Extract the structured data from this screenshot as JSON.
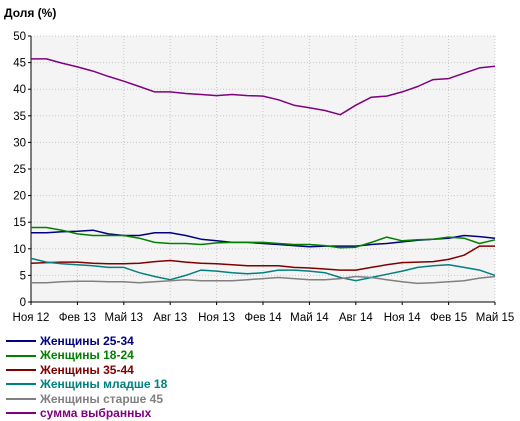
{
  "chart_data": {
    "type": "line",
    "title": "",
    "ylabel": "Доля (%)",
    "xlabel": "",
    "ylim": [
      0,
      50
    ],
    "yticks": [
      0,
      5,
      10,
      15,
      20,
      25,
      30,
      35,
      40,
      45,
      50
    ],
    "grid": true,
    "legend_placement": "bottom-left",
    "background": "#f4f4f4",
    "xtick_labels": [
      {
        "index": 0,
        "label": "Ноя 12"
      },
      {
        "index": 3,
        "label": "Фев 13"
      },
      {
        "index": 6,
        "label": "Май 13"
      },
      {
        "index": 9,
        "label": "Авг 13"
      },
      {
        "index": 12,
        "label": "Ноя 13"
      },
      {
        "index": 15,
        "label": "Фев 14"
      },
      {
        "index": 18,
        "label": "Май 14"
      },
      {
        "index": 21,
        "label": "Авг 14"
      },
      {
        "index": 24,
        "label": "Ноя 14"
      },
      {
        "index": 27,
        "label": "Фев 15"
      },
      {
        "index": 30,
        "label": "Май 15"
      }
    ],
    "x": [
      "Ноя 12",
      "Дек 12",
      "Янв 13",
      "Фев 13",
      "Мар 13",
      "Апр 13",
      "Май 13",
      "Июн 13",
      "Июл 13",
      "Авг 13",
      "Сен 13",
      "Окт 13",
      "Ноя 13",
      "Дек 13",
      "Янв 14",
      "Фев 14",
      "Мар 14",
      "Апр 14",
      "Май 14",
      "Июн 14",
      "Июл 14",
      "Авг 14",
      "Сен 14",
      "Окт 14",
      "Ноя 14",
      "Дек 14",
      "Янв 15",
      "Фев 15",
      "Мар 15",
      "Апр 15",
      "Май 15"
    ],
    "series": [
      {
        "name": "Женщины 25-34",
        "color": "#000080",
        "values": [
          13,
          13,
          13.2,
          13.3,
          13.5,
          12.8,
          12.5,
          12.5,
          13,
          13,
          12.5,
          11.8,
          11.5,
          11.2,
          11.2,
          11,
          10.8,
          10.6,
          10.4,
          10.5,
          10.5,
          10.5,
          10.8,
          11,
          11.3,
          11.6,
          11.8,
          12,
          12.5,
          12.3,
          12
        ]
      },
      {
        "name": "Женщины 18-24",
        "color": "#008000",
        "values": [
          14,
          14,
          13.5,
          12.8,
          12.5,
          12.5,
          12.5,
          12,
          11.2,
          11,
          11,
          10.8,
          11.1,
          11.2,
          11.2,
          11.2,
          11,
          10.8,
          10.8,
          10.6,
          10.2,
          10.3,
          11.2,
          12.2,
          11.5,
          11.7,
          11.8,
          12.2,
          12,
          11,
          11.7
        ]
      },
      {
        "name": "Женщины 35-44",
        "color": "#800000",
        "values": [
          7.3,
          7.4,
          7.5,
          7.5,
          7.3,
          7.2,
          7.2,
          7.3,
          7.6,
          7.8,
          7.5,
          7.3,
          7.2,
          7,
          6.8,
          6.8,
          6.8,
          6.5,
          6.4,
          6.2,
          6,
          6,
          6.5,
          7,
          7.4,
          7.5,
          7.6,
          8,
          8.8,
          10.5,
          10.5
        ]
      },
      {
        "name": "Женщины младше 18",
        "color": "#008080",
        "values": [
          8.2,
          7.5,
          7.2,
          7,
          6.8,
          6.5,
          6.5,
          5.5,
          4.8,
          4.2,
          5,
          6,
          5.8,
          5.5,
          5.3,
          5.5,
          6,
          6,
          5.8,
          5.5,
          4.6,
          4,
          4.6,
          5.2,
          5.8,
          6.5,
          6.8,
          7,
          6.5,
          6,
          5
        ]
      },
      {
        "name": "Женщины старше 45",
        "color": "#808080",
        "values": [
          3.6,
          3.6,
          3.8,
          3.9,
          3.9,
          3.8,
          3.8,
          3.6,
          3.8,
          4,
          4.2,
          4,
          4,
          4,
          4.2,
          4.4,
          4.6,
          4.4,
          4.2,
          4.2,
          4.4,
          4.8,
          4.6,
          4.2,
          3.8,
          3.5,
          3.6,
          3.8,
          4,
          4.5,
          4.8
        ]
      },
      {
        "name": "сумма выбранных",
        "color": "#800080",
        "values": [
          45.7,
          45.7,
          44.9,
          44.2,
          43.4,
          42.4,
          41.5,
          40.5,
          39.5,
          39.5,
          39.2,
          39.0,
          38.8,
          39.0,
          38.8,
          38.7,
          38.0,
          37.0,
          36.5,
          36.0,
          35.2,
          37.0,
          38.5,
          38.7,
          39.5,
          40.5,
          41.8,
          42.0,
          43.0,
          44.0,
          44.3
        ]
      }
    ]
  }
}
